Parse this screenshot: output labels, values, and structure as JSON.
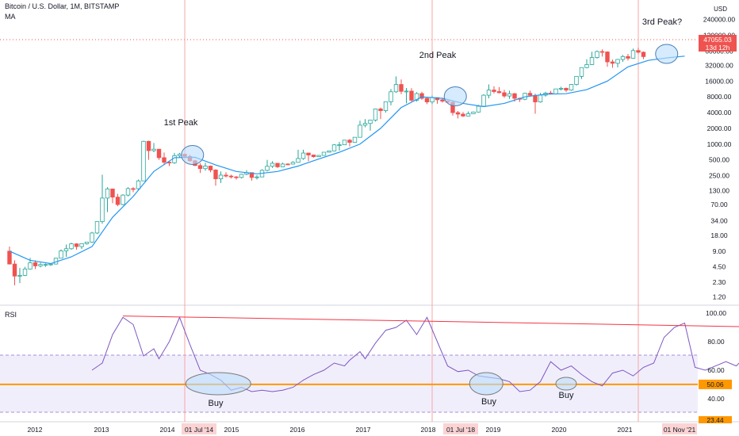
{
  "header": {
    "title": "Bitcoin / U.S. Dollar, 1M, BITSTAMP",
    "indicator": "MA"
  },
  "rsi_panel": {
    "label": "RSI"
  },
  "colors": {
    "up": "#26a69a",
    "down": "#ef5350",
    "ma": "#2196f3",
    "rsi_line": "#7e57c2",
    "rsi_band": "#f1eefb",
    "support": "#ff9800",
    "trendline": "#f23645",
    "circle_fill": "#bbdefb",
    "circle_stroke": "#4a7fb5",
    "vline": "#f8a5a5"
  },
  "price_axis": {
    "currency": "USD",
    "ticks": [
      "240000.00",
      "120000.00",
      "60000.00",
      "32000.00",
      "16000.00",
      "8000.00",
      "4000.00",
      "2000.00",
      "1000.00",
      "500.00",
      "250.00",
      "130.00",
      "70.00",
      "34.00",
      "18.00",
      "9.00",
      "4.50",
      "2.30",
      "1.20"
    ],
    "current_price": "47055.03",
    "countdown": "13d 12h"
  },
  "rsi_axis": {
    "ticks": [
      "100.00",
      "80.00",
      "60.00",
      "40.00"
    ],
    "support_value": "50.06",
    "bottom_value": "23.44"
  },
  "time_axis": {
    "labels": [
      "2012",
      "2013",
      "2014",
      "01 Jul '14",
      "2015",
      "2016",
      "2017",
      "2018",
      "01 Jul '18",
      "2019",
      "2020",
      "2021",
      "01 Nov '21"
    ],
    "highlighted": [
      "01 Jul '14",
      "01 Jul '18",
      "01 Nov '21"
    ]
  },
  "annotations": {
    "peaks": [
      "1st Peak",
      "2nd Peak",
      "3rd Peak?"
    ],
    "buys": [
      "Buy",
      "Buy",
      "Buy"
    ]
  },
  "chart_data": {
    "type": "candlestick",
    "title": "Bitcoin / U.S. Dollar, 1M, BITSTAMP",
    "y_scale": "log",
    "ylim": [
      0.9,
      280000
    ],
    "start_month": "2011-09",
    "candles": [
      [
        9,
        11,
        5,
        5.1
      ],
      [
        5.1,
        6,
        2,
        3
      ],
      [
        3,
        4.3,
        2.2,
        3.1
      ],
      [
        3.1,
        4.5,
        3,
        4.1
      ],
      [
        4.1,
        6.7,
        4,
        5.4
      ],
      [
        5.4,
        6,
        4.1,
        4.7
      ],
      [
        4.7,
        5.4,
        4.4,
        5
      ],
      [
        5,
        5.2,
        4.5,
        5
      ],
      [
        5,
        5.2,
        4.7,
        5.1
      ],
      [
        5.1,
        6.7,
        5,
        6.6
      ],
      [
        6.6,
        9.7,
        6.6,
        9.1
      ],
      [
        9.1,
        12,
        7,
        10
      ],
      [
        10,
        13,
        9.6,
        12.4
      ],
      [
        12.4,
        12.8,
        9.6,
        11
      ],
      [
        11,
        11.4,
        9.9,
        12.5
      ],
      [
        12.5,
        13.5,
        12,
        13.4
      ],
      [
        13.4,
        21,
        13,
        20
      ],
      [
        20,
        33,
        19,
        33
      ],
      [
        33,
        260,
        30,
        93
      ],
      [
        93,
        150,
        50,
        139
      ],
      [
        139,
        140,
        74,
        97
      ],
      [
        97,
        112,
        65,
        70
      ],
      [
        70,
        110,
        68,
        106
      ],
      [
        106,
        150,
        100,
        141
      ],
      [
        141,
        150,
        120,
        140
      ],
      [
        140,
        210,
        130,
        198
      ],
      [
        198,
        1160,
        198,
        1130
      ],
      [
        1130,
        1160,
        500,
        750
      ],
      [
        750,
        1050,
        700,
        800
      ],
      [
        800,
        800,
        500,
        550
      ],
      [
        550,
        690,
        400,
        450
      ],
      [
        450,
        480,
        380,
        440
      ],
      [
        440,
        680,
        420,
        600
      ],
      [
        600,
        680,
        560,
        640
      ],
      [
        640,
        660,
        570,
        580
      ],
      [
        580,
        630,
        460,
        480
      ],
      [
        480,
        500,
        380,
        390
      ],
      [
        390,
        430,
        280,
        340
      ],
      [
        340,
        440,
        310,
        380
      ],
      [
        380,
        390,
        290,
        320
      ],
      [
        320,
        330,
        160,
        217
      ],
      [
        217,
        300,
        180,
        255
      ],
      [
        255,
        290,
        230,
        245
      ],
      [
        245,
        260,
        220,
        236
      ],
      [
        236,
        245,
        210,
        230
      ],
      [
        230,
        270,
        220,
        265
      ],
      [
        265,
        318,
        255,
        285
      ],
      [
        285,
        285,
        200,
        230
      ],
      [
        230,
        255,
        210,
        236
      ],
      [
        236,
        330,
        235,
        315
      ],
      [
        315,
        500,
        300,
        377
      ],
      [
        377,
        470,
        350,
        430
      ],
      [
        430,
        430,
        350,
        368
      ],
      [
        368,
        440,
        365,
        416
      ],
      [
        416,
        430,
        400,
        415
      ],
      [
        415,
        470,
        410,
        448
      ],
      [
        448,
        780,
        440,
        530
      ],
      [
        530,
        780,
        500,
        675
      ],
      [
        675,
        680,
        470,
        620
      ],
      [
        620,
        620,
        550,
        575
      ],
      [
        575,
        620,
        570,
        608
      ],
      [
        608,
        700,
        600,
        700
      ],
      [
        700,
        750,
        690,
        740
      ],
      [
        740,
        1000,
        730,
        968
      ],
      [
        968,
        1100,
        750,
        970
      ],
      [
        970,
        1200,
        960,
        1190
      ],
      [
        1190,
        1250,
        900,
        1080
      ],
      [
        1080,
        1350,
        1060,
        1350
      ],
      [
        1350,
        2800,
        1350,
        2300
      ],
      [
        2300,
        3000,
        2100,
        2480
      ],
      [
        2480,
        2900,
        1800,
        2870
      ],
      [
        2870,
        4800,
        2700,
        4700
      ],
      [
        4700,
        5000,
        3000,
        4360
      ],
      [
        4360,
        6200,
        4000,
        6450
      ],
      [
        6450,
        11300,
        5500,
        10000
      ],
      [
        10000,
        19700,
        9500,
        13800
      ],
      [
        13800,
        17200,
        9000,
        10200
      ],
      [
        10200,
        11800,
        6000,
        10300
      ],
      [
        10300,
        11700,
        6500,
        6900
      ],
      [
        6900,
        9800,
        6500,
        9240
      ],
      [
        9240,
        10000,
        7000,
        7500
      ],
      [
        7500,
        7800,
        5800,
        6400
      ],
      [
        6400,
        8500,
        5800,
        7730
      ],
      [
        7730,
        7800,
        5900,
        7030
      ],
      [
        7030,
        7400,
        6200,
        6630
      ],
      [
        6630,
        6800,
        6100,
        6300
      ],
      [
        6300,
        6600,
        3500,
        4000
      ],
      [
        4000,
        4300,
        3100,
        3740
      ],
      [
        3740,
        4100,
        3300,
        3440
      ],
      [
        3440,
        4200,
        3400,
        3810
      ],
      [
        3810,
        4200,
        3800,
        4100
      ],
      [
        4100,
        5600,
        4000,
        5300
      ],
      [
        5300,
        9000,
        5200,
        8600
      ],
      [
        8600,
        13800,
        7500,
        10800
      ],
      [
        10800,
        12800,
        9300,
        10100
      ],
      [
        10100,
        12300,
        9300,
        9600
      ],
      [
        9600,
        10900,
        7700,
        8300
      ],
      [
        8300,
        10500,
        7300,
        9200
      ],
      [
        9200,
        9500,
        6500,
        7500
      ],
      [
        7500,
        7700,
        6400,
        7200
      ],
      [
        7200,
        9600,
        6900,
        9350
      ],
      [
        9350,
        10500,
        8400,
        8550
      ],
      [
        8550,
        9200,
        3800,
        6400
      ],
      [
        6400,
        9500,
        6200,
        8630
      ],
      [
        8630,
        10000,
        8100,
        9450
      ],
      [
        9450,
        10400,
        8900,
        9140
      ],
      [
        9140,
        11400,
        8900,
        11330
      ],
      [
        11330,
        12500,
        10600,
        11650
      ],
      [
        11650,
        12100,
        9900,
        10780
      ],
      [
        10780,
        14000,
        10400,
        13800
      ],
      [
        13800,
        19900,
        13200,
        19700
      ],
      [
        19700,
        29000,
        17600,
        28990
      ],
      [
        28990,
        41900,
        28100,
        33100
      ],
      [
        33100,
        58300,
        32300,
        45200
      ],
      [
        45200,
        61800,
        43000,
        58800
      ],
      [
        58800,
        64800,
        47000,
        57700
      ],
      [
        57700,
        59400,
        30000,
        37300
      ],
      [
        37300,
        41300,
        28800,
        35000
      ],
      [
        35000,
        42400,
        29300,
        41500
      ],
      [
        41500,
        50500,
        37300,
        47100
      ],
      [
        47100,
        52900,
        39600,
        43800
      ],
      [
        43800,
        67000,
        43300,
        61300
      ],
      [
        61300,
        69000,
        53300,
        57000
      ],
      [
        57000,
        59000,
        42000,
        47055
      ]
    ],
    "ma": [
      [
        0,
        9
      ],
      [
        4,
        6
      ],
      [
        8,
        5.2
      ],
      [
        12,
        7
      ],
      [
        16,
        11
      ],
      [
        20,
        40
      ],
      [
        24,
        100
      ],
      [
        28,
        300
      ],
      [
        32,
        550
      ],
      [
        36,
        560
      ],
      [
        40,
        400
      ],
      [
        44,
        300
      ],
      [
        48,
        270
      ],
      [
        52,
        300
      ],
      [
        56,
        380
      ],
      [
        60,
        520
      ],
      [
        64,
        700
      ],
      [
        68,
        1000
      ],
      [
        72,
        2000
      ],
      [
        76,
        5000
      ],
      [
        80,
        8000
      ],
      [
        84,
        7500
      ],
      [
        88,
        6000
      ],
      [
        92,
        5200
      ],
      [
        96,
        6000
      ],
      [
        100,
        8000
      ],
      [
        104,
        9000
      ],
      [
        108,
        9200
      ],
      [
        112,
        11000
      ],
      [
        116,
        16000
      ],
      [
        120,
        30000
      ],
      [
        124,
        40000
      ],
      [
        128,
        45000
      ],
      [
        131,
        48000
      ]
    ],
    "rsi": [
      [
        16,
        60
      ],
      [
        18,
        65
      ],
      [
        20,
        85
      ],
      [
        22,
        97
      ],
      [
        24,
        92
      ],
      [
        26,
        70
      ],
      [
        28,
        75
      ],
      [
        29,
        68
      ],
      [
        31,
        80
      ],
      [
        33,
        97
      ],
      [
        35,
        78
      ],
      [
        37,
        60
      ],
      [
        39,
        57
      ],
      [
        41,
        53
      ],
      [
        43,
        46
      ],
      [
        45,
        48
      ],
      [
        47,
        45
      ],
      [
        49,
        46
      ],
      [
        51,
        45
      ],
      [
        53,
        46
      ],
      [
        55,
        48
      ],
      [
        57,
        53
      ],
      [
        59,
        57
      ],
      [
        61,
        60
      ],
      [
        63,
        65
      ],
      [
        65,
        63
      ],
      [
        66,
        67
      ],
      [
        68,
        73
      ],
      [
        69,
        68
      ],
      [
        71,
        79
      ],
      [
        73,
        88
      ],
      [
        75,
        90
      ],
      [
        77,
        95
      ],
      [
        79,
        85
      ],
      [
        81,
        97
      ],
      [
        83,
        80
      ],
      [
        85,
        63
      ],
      [
        87,
        59
      ],
      [
        89,
        60
      ],
      [
        91,
        56
      ],
      [
        93,
        55
      ],
      [
        95,
        54
      ],
      [
        97,
        52
      ],
      [
        99,
        45
      ],
      [
        101,
        46
      ],
      [
        103,
        52
      ],
      [
        105,
        66
      ],
      [
        107,
        60
      ],
      [
        109,
        63
      ],
      [
        111,
        57
      ],
      [
        113,
        52
      ],
      [
        115,
        49
      ],
      [
        117,
        58
      ],
      [
        119,
        60
      ],
      [
        121,
        56
      ],
      [
        123,
        62
      ],
      [
        125,
        65
      ],
      [
        127,
        83
      ],
      [
        129,
        90
      ],
      [
        131,
        93
      ],
      [
        133,
        62
      ],
      [
        135,
        60
      ],
      [
        137,
        63
      ],
      [
        139,
        66
      ],
      [
        141,
        63
      ],
      [
        143,
        70
      ],
      [
        145,
        60
      ]
    ],
    "rsi_trendline": [
      [
        22,
        98
      ],
      [
        151,
        90
      ]
    ],
    "rsi_support": 50.06,
    "annotated_dates": [
      "2014-07",
      "2018-07",
      "2021-11"
    ]
  }
}
